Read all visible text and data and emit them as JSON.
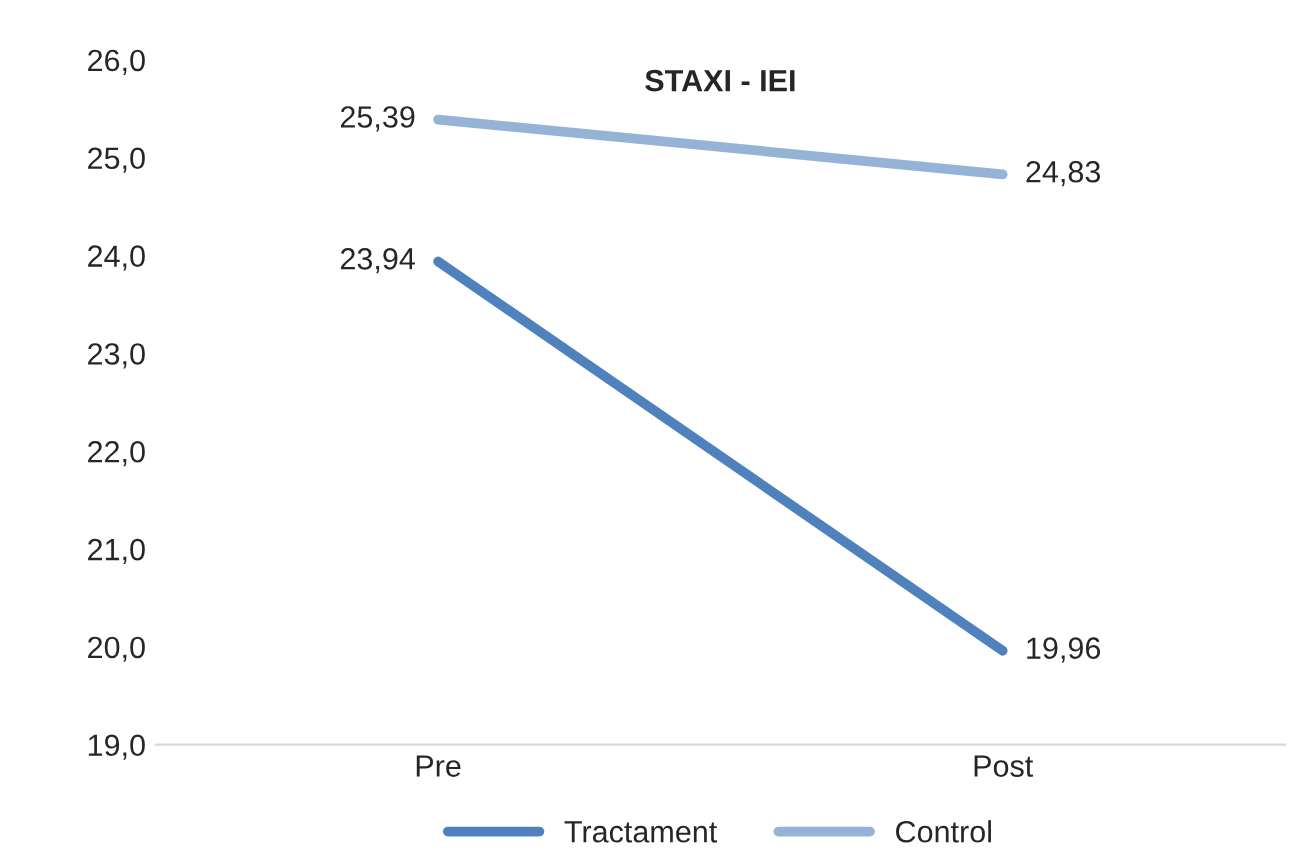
{
  "chart_data": {
    "type": "line",
    "title": "STAXI - IEI",
    "categories": [
      "Pre",
      "Post"
    ],
    "series": [
      {
        "name": "Tractament",
        "color": "#4f81bd",
        "values": [
          23.94,
          19.96
        ],
        "value_labels": [
          "23,94",
          "19,96"
        ]
      },
      {
        "name": "Control",
        "color": "#95b3d7",
        "values": [
          25.39,
          24.83
        ],
        "value_labels": [
          "25,39",
          "24,83"
        ]
      }
    ],
    "ylim": [
      19,
      26
    ],
    "yticks": [
      {
        "value": 19,
        "label": "19,0"
      },
      {
        "value": 20,
        "label": "20,0"
      },
      {
        "value": 21,
        "label": "21,0"
      },
      {
        "value": 22,
        "label": "22,0"
      },
      {
        "value": 23,
        "label": "23,0"
      },
      {
        "value": 24,
        "label": "24,0"
      },
      {
        "value": 25,
        "label": "25,0"
      },
      {
        "value": 26,
        "label": "26,0"
      }
    ],
    "grid": false,
    "legend": "bottom",
    "marker": "none",
    "line_style": "solid"
  }
}
